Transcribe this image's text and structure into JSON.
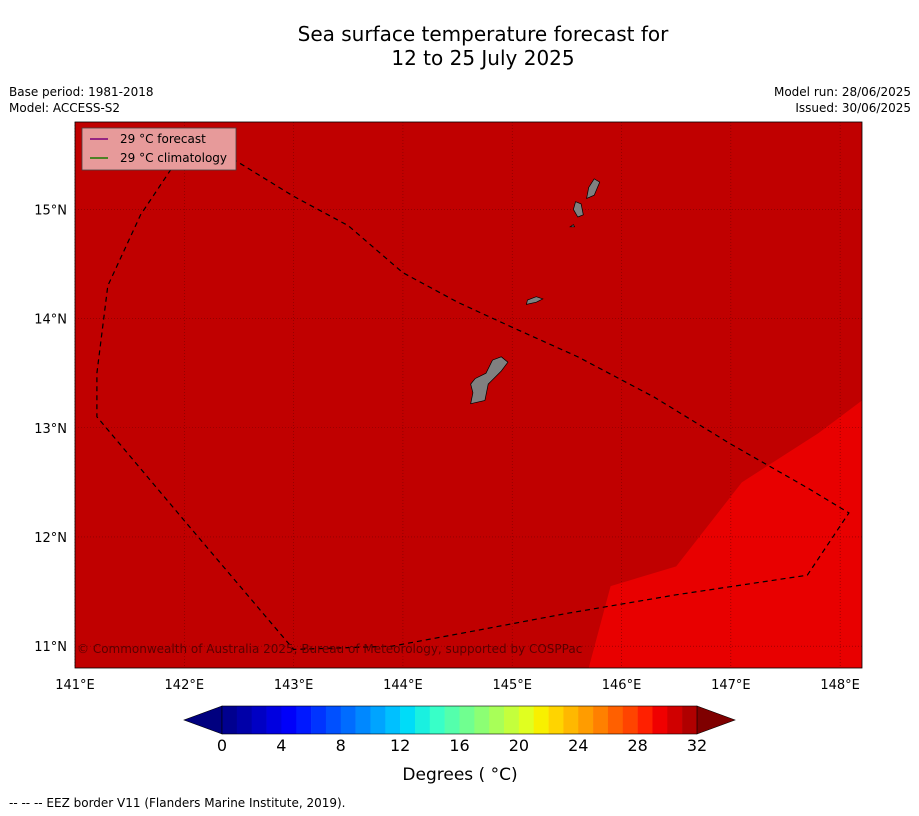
{
  "title": {
    "line1": "Sea surface temperature forecast for",
    "line2": "12 to 25 July 2025"
  },
  "meta_left": {
    "base_period": "Base period: 1981-2018",
    "model": "Model: ACCESS-S2"
  },
  "meta_right": {
    "model_run": "Model run: 28/06/2025",
    "issued": "Issued: 30/06/2025"
  },
  "map": {
    "lon_range": [
      141,
      148.2
    ],
    "lat_range": [
      10.8,
      15.8
    ],
    "lon_ticks": [
      141,
      142,
      143,
      144,
      145,
      146,
      147,
      148
    ],
    "lon_tick_labels": [
      "141°E",
      "142°E",
      "143°E",
      "144°E",
      "145°E",
      "146°E",
      "147°E",
      "148°E"
    ],
    "lat_ticks": [
      11,
      12,
      13,
      14,
      15
    ],
    "lat_tick_labels": [
      "11°N",
      "12°N",
      "13°N",
      "14°N",
      "15°N"
    ],
    "grid": true,
    "colors": {
      "sst_29_30": "#c00000",
      "sst_30_31": "#e80000",
      "land": "#808080",
      "grid": "#7a0000"
    },
    "warm_region_polygon": [
      [
        145.7,
        10.8
      ],
      [
        145.9,
        11.55
      ],
      [
        146.5,
        11.73
      ],
      [
        147.1,
        12.5
      ],
      [
        147.8,
        12.95
      ],
      [
        148.2,
        13.25
      ],
      [
        148.2,
        10.8
      ]
    ],
    "eez_border": [
      [
        142.3,
        15.55
      ],
      [
        143.0,
        15.12
      ],
      [
        143.5,
        14.85
      ],
      [
        144.0,
        14.42
      ],
      [
        144.5,
        14.15
      ],
      [
        145.0,
        13.92
      ],
      [
        145.6,
        13.65
      ],
      [
        146.3,
        13.28
      ],
      [
        147.0,
        12.85
      ],
      [
        147.7,
        12.45
      ],
      [
        148.08,
        12.22
      ],
      [
        147.7,
        11.65
      ],
      [
        146.5,
        11.47
      ],
      [
        145.5,
        11.3
      ],
      [
        144.6,
        11.13
      ],
      [
        143.9,
        11.0
      ],
      [
        143.0,
        10.97
      ],
      [
        142.0,
        12.15
      ],
      [
        141.2,
        13.1
      ],
      [
        141.2,
        13.5
      ],
      [
        141.3,
        14.3
      ],
      [
        141.6,
        14.95
      ],
      [
        141.9,
        15.4
      ],
      [
        142.3,
        15.55
      ]
    ],
    "islands": [
      {
        "name": "guam",
        "coords": [
          [
            144.62,
            13.22
          ],
          [
            144.75,
            13.25
          ],
          [
            144.78,
            13.4
          ],
          [
            144.9,
            13.52
          ],
          [
            144.96,
            13.6
          ],
          [
            144.9,
            13.65
          ],
          [
            144.82,
            13.62
          ],
          [
            144.76,
            13.5
          ],
          [
            144.66,
            13.45
          ],
          [
            144.62,
            13.4
          ],
          [
            144.64,
            13.32
          ]
        ]
      },
      {
        "name": "rota",
        "coords": [
          [
            145.13,
            14.13
          ],
          [
            145.22,
            14.15
          ],
          [
            145.28,
            14.18
          ],
          [
            145.22,
            14.2
          ],
          [
            145.14,
            14.17
          ]
        ]
      },
      {
        "name": "tinian",
        "coords": [
          [
            145.6,
            14.93
          ],
          [
            145.65,
            14.95
          ],
          [
            145.63,
            15.05
          ],
          [
            145.58,
            15.07
          ],
          [
            145.56,
            15.0
          ]
        ]
      },
      {
        "name": "saipan",
        "coords": [
          [
            145.68,
            15.1
          ],
          [
            145.75,
            15.13
          ],
          [
            145.8,
            15.25
          ],
          [
            145.75,
            15.28
          ],
          [
            145.7,
            15.2
          ]
        ]
      },
      {
        "name": "aguijan",
        "coords": [
          [
            145.53,
            14.84
          ],
          [
            145.57,
            14.84
          ],
          [
            145.56,
            14.86
          ]
        ]
      }
    ],
    "copyright": "© Commonwealth of Australia 2025, Bureau of Meteorology, supported by COSPPac"
  },
  "legend": {
    "forecast_label": "29 °C  forecast",
    "forecast_color": "#7b007b",
    "climatology_label": "29 °C  climatology",
    "climatology_color": "#1a7a00"
  },
  "colorbar": {
    "min": 0,
    "max": 32,
    "step": 1,
    "ticks": [
      0,
      4,
      8,
      12,
      16,
      20,
      24,
      28,
      32
    ],
    "tick_labels": [
      "0",
      "4",
      "8",
      "12",
      "16",
      "20",
      "24",
      "28",
      "32"
    ],
    "under_color": "#00007f",
    "over_color": "#7f0000",
    "colors": [
      "#00008f",
      "#0000a8",
      "#0000c4",
      "#0000e0",
      "#0000fa",
      "#0018ff",
      "#0034ff",
      "#0050ff",
      "#006cff",
      "#0088ff",
      "#00a4ff",
      "#00c0ff",
      "#00dcf8",
      "#1af0e0",
      "#38ffc8",
      "#54ffac",
      "#70ff90",
      "#8cff74",
      "#a8ff58",
      "#c4ff3c",
      "#e0ff20",
      "#f8f000",
      "#ffd400",
      "#ffb800",
      "#ff9c00",
      "#ff8000",
      "#ff6000",
      "#ff4400",
      "#ff2000",
      "#f00000",
      "#d00000",
      "#b00000"
    ],
    "label": "Degrees ( °C)"
  },
  "footnote": "--  --  -- EEZ border V11 (Flanders Marine Institute, 2019)."
}
